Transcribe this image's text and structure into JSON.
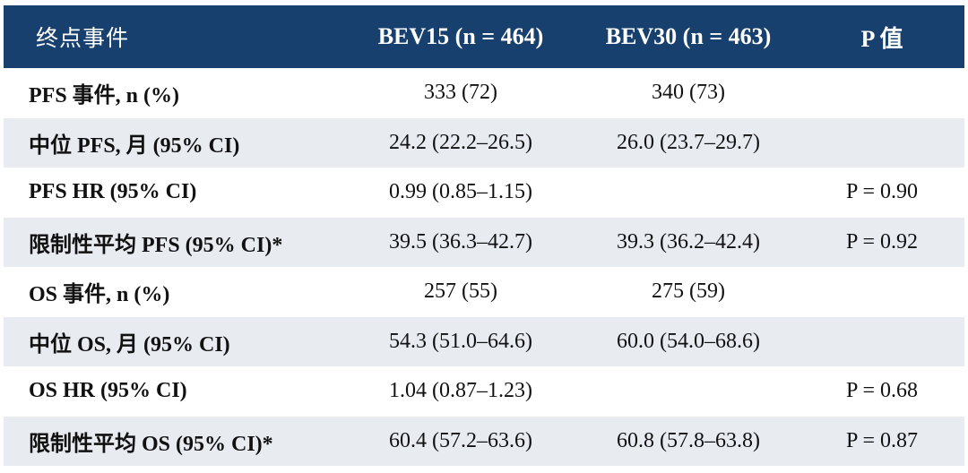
{
  "table": {
    "headers": {
      "endpoint": "终点事件",
      "bev15": "BEV15 (n = 464)",
      "bev30": "BEV30 (n = 463)",
      "p": "P 值"
    },
    "rows": [
      {
        "label": "PFS 事件, n (%)",
        "bev15": "333 (72)",
        "bev30": "340 (73)",
        "p": ""
      },
      {
        "label": "中位 PFS, 月  (95% CI)",
        "bev15": "24.2 (22.2–26.5)",
        "bev30": "26.0 (23.7–29.7)",
        "p": ""
      },
      {
        "label": "PFS HR (95% CI)",
        "bev15": "0.99 (0.85–1.15)",
        "bev30": "",
        "p": "P = 0.90"
      },
      {
        "label": "限制性平均 PFS (95% CI)*",
        "bev15": "39.5 (36.3–42.7)",
        "bev30": "39.3 (36.2–42.4)",
        "p": "P = 0.92"
      },
      {
        "label": "OS 事件, n (%)",
        "bev15": "257 (55)",
        "bev30": "275 (59)",
        "p": ""
      },
      {
        "label": "中位 OS, 月  (95% CI)",
        "bev15": "54.3 (51.0–64.6)",
        "bev30": "60.0 (54.0–68.6)",
        "p": ""
      },
      {
        "label": "OS HR (95% CI)",
        "bev15": "1.04 (0.87–1.23)",
        "bev30": "",
        "p": "P = 0.68"
      },
      {
        "label": "限制性平均 OS (95% CI)*",
        "bev15": "60.4 (57.2–63.6)",
        "bev30": "60.8 (57.8–63.8)",
        "p": "P = 0.87"
      }
    ],
    "colors": {
      "header_bg": "#17406e",
      "header_text": "#ffffff",
      "stripe": "#e8ecf1"
    }
  }
}
